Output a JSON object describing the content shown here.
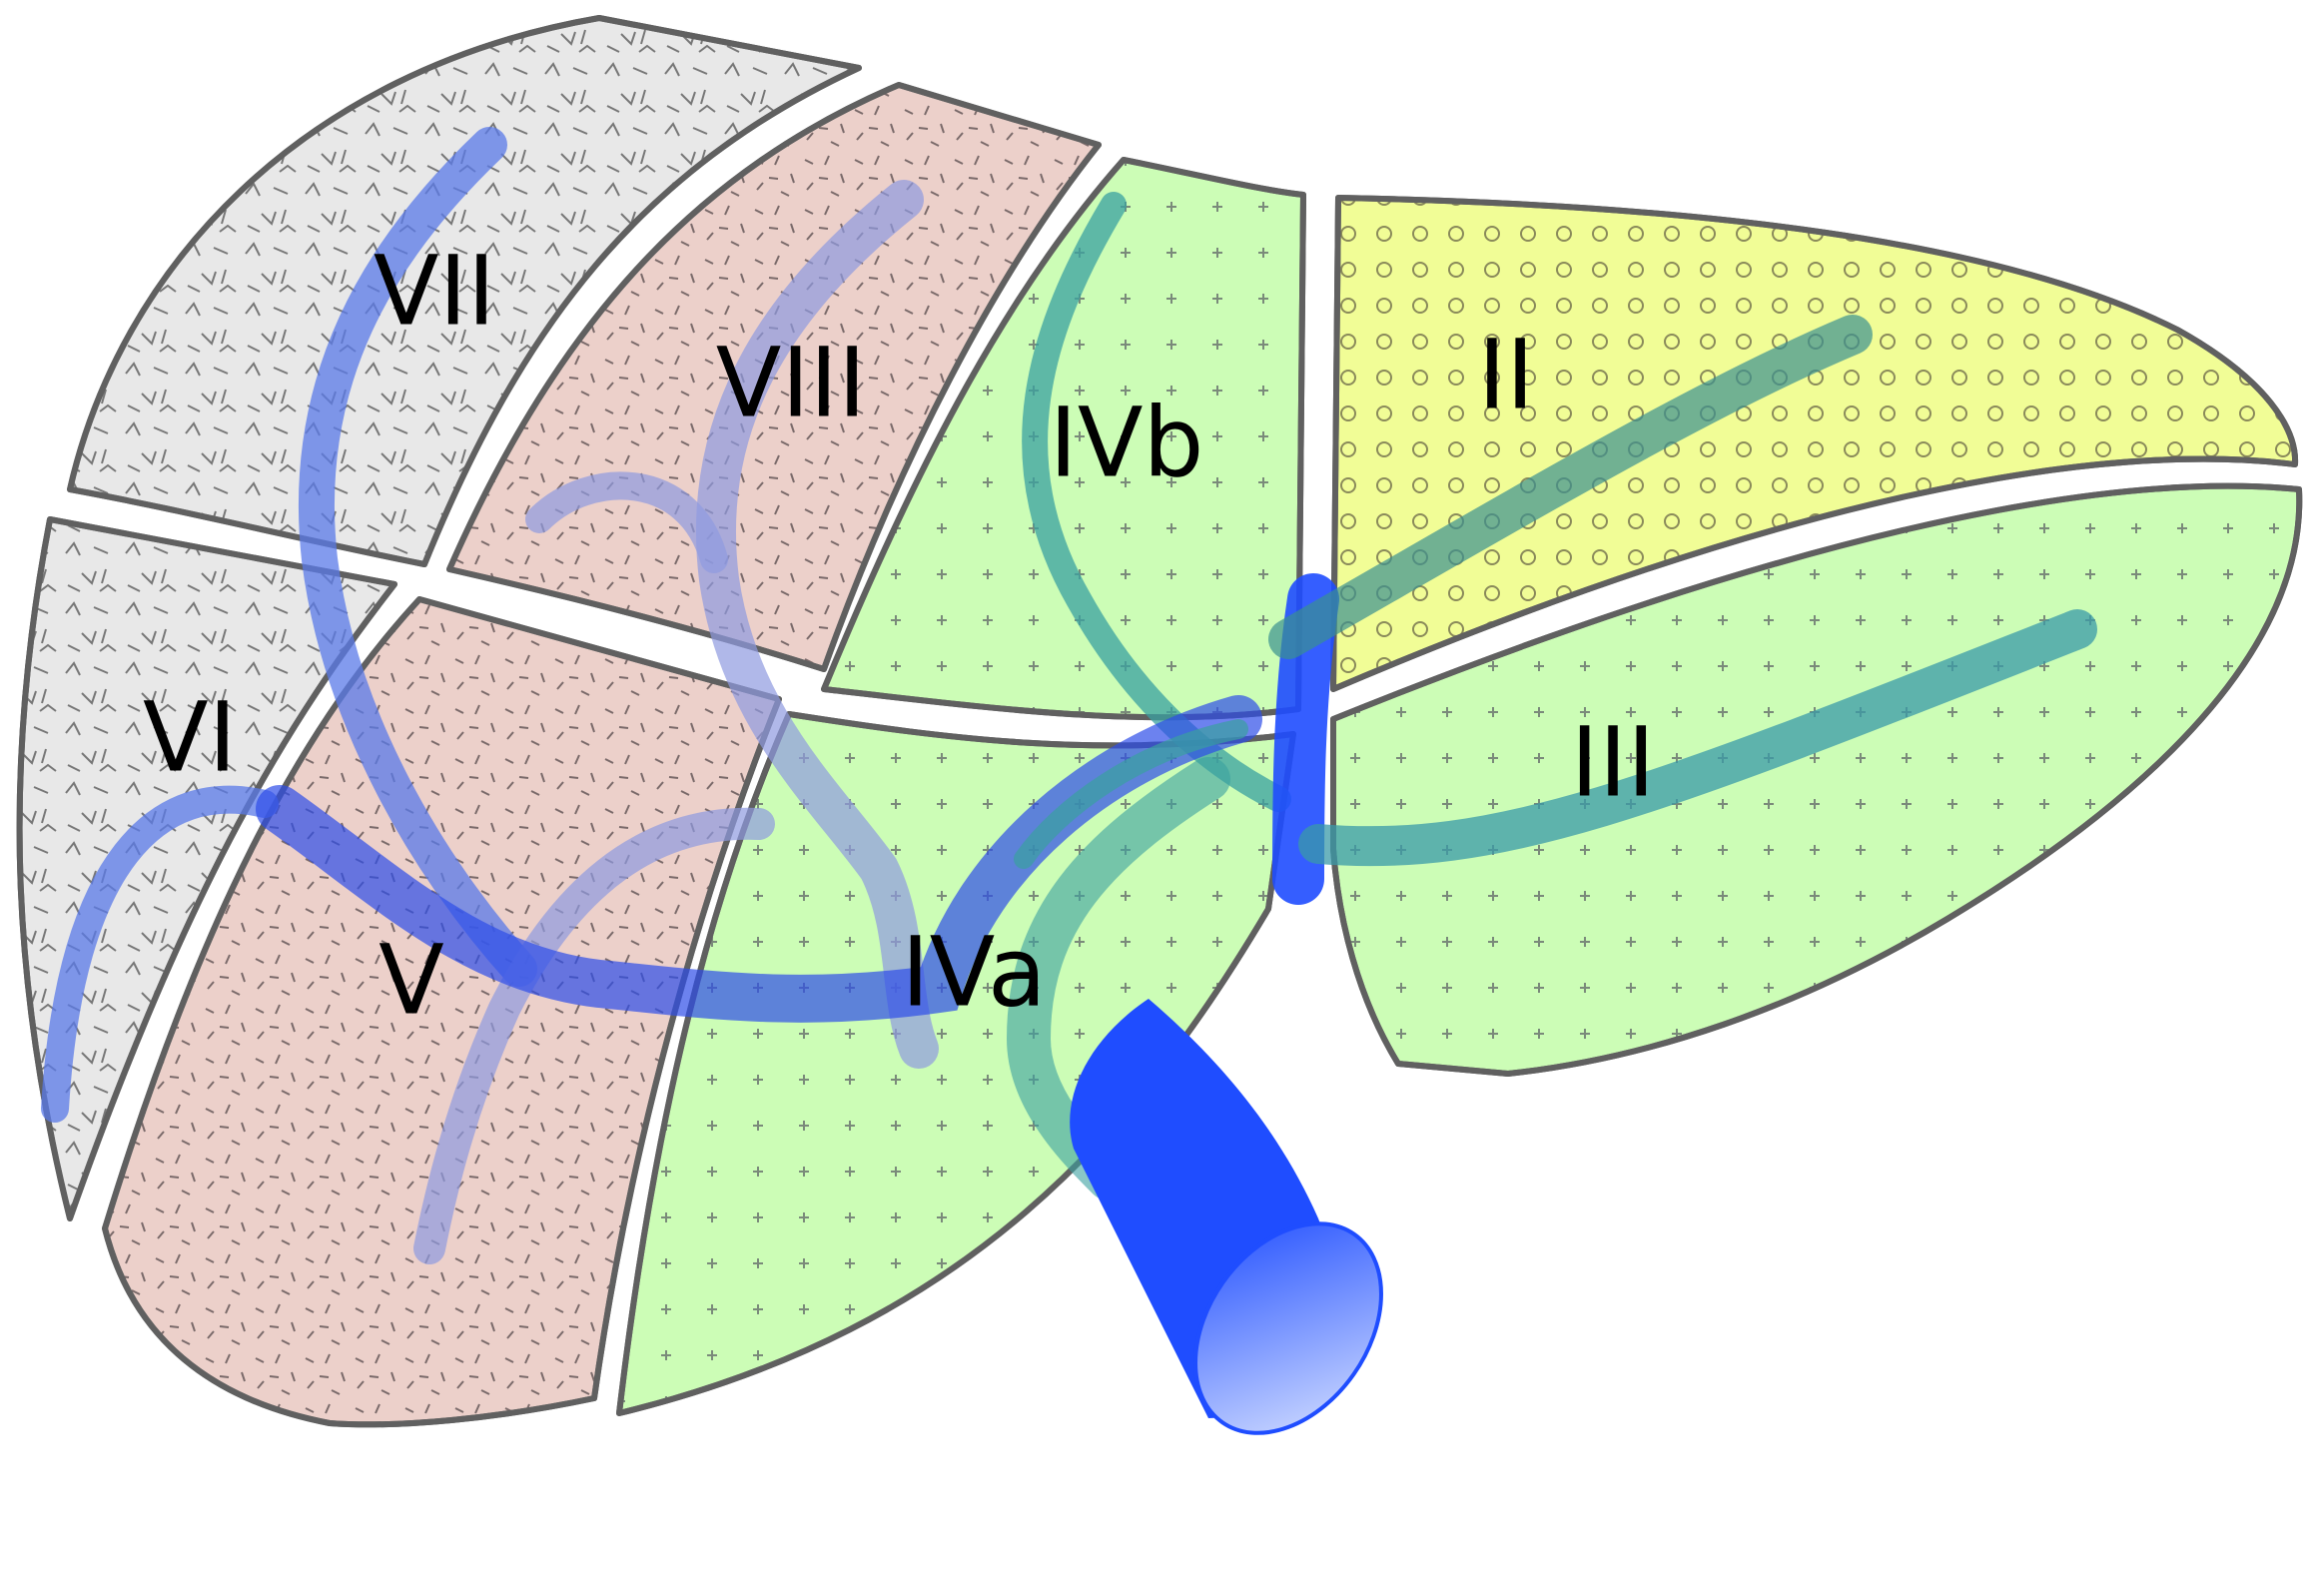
{
  "diagram": {
    "segments": [
      {
        "id": "vii",
        "label": "VII",
        "fill": "#e8e8e8",
        "pattern": "flecks"
      },
      {
        "id": "vi",
        "label": "VI",
        "fill": "#e8e8e8",
        "pattern": "flecks"
      },
      {
        "id": "viii",
        "label": "VIII",
        "fill": "#ecd0ca",
        "pattern": "dashes"
      },
      {
        "id": "v",
        "label": "V",
        "fill": "#ecd0ca",
        "pattern": "dashes"
      },
      {
        "id": "ivb",
        "label": "IVb",
        "fill": "#ccfdb6",
        "pattern": "plus"
      },
      {
        "id": "iva",
        "label": "IVa",
        "fill": "#ccfdb6",
        "pattern": "plus"
      },
      {
        "id": "ii",
        "label": "II",
        "fill": "#f1fd96",
        "pattern": "circles"
      },
      {
        "id": "iii",
        "label": "III",
        "fill": "#ccfdb6",
        "pattern": "plus"
      }
    ],
    "colors": {
      "outline": "#606060",
      "portal_vein": "#1f4dff",
      "vessel_overlay": "#5a6ae0",
      "hepatic_branch": "#3aa0a0"
    }
  }
}
